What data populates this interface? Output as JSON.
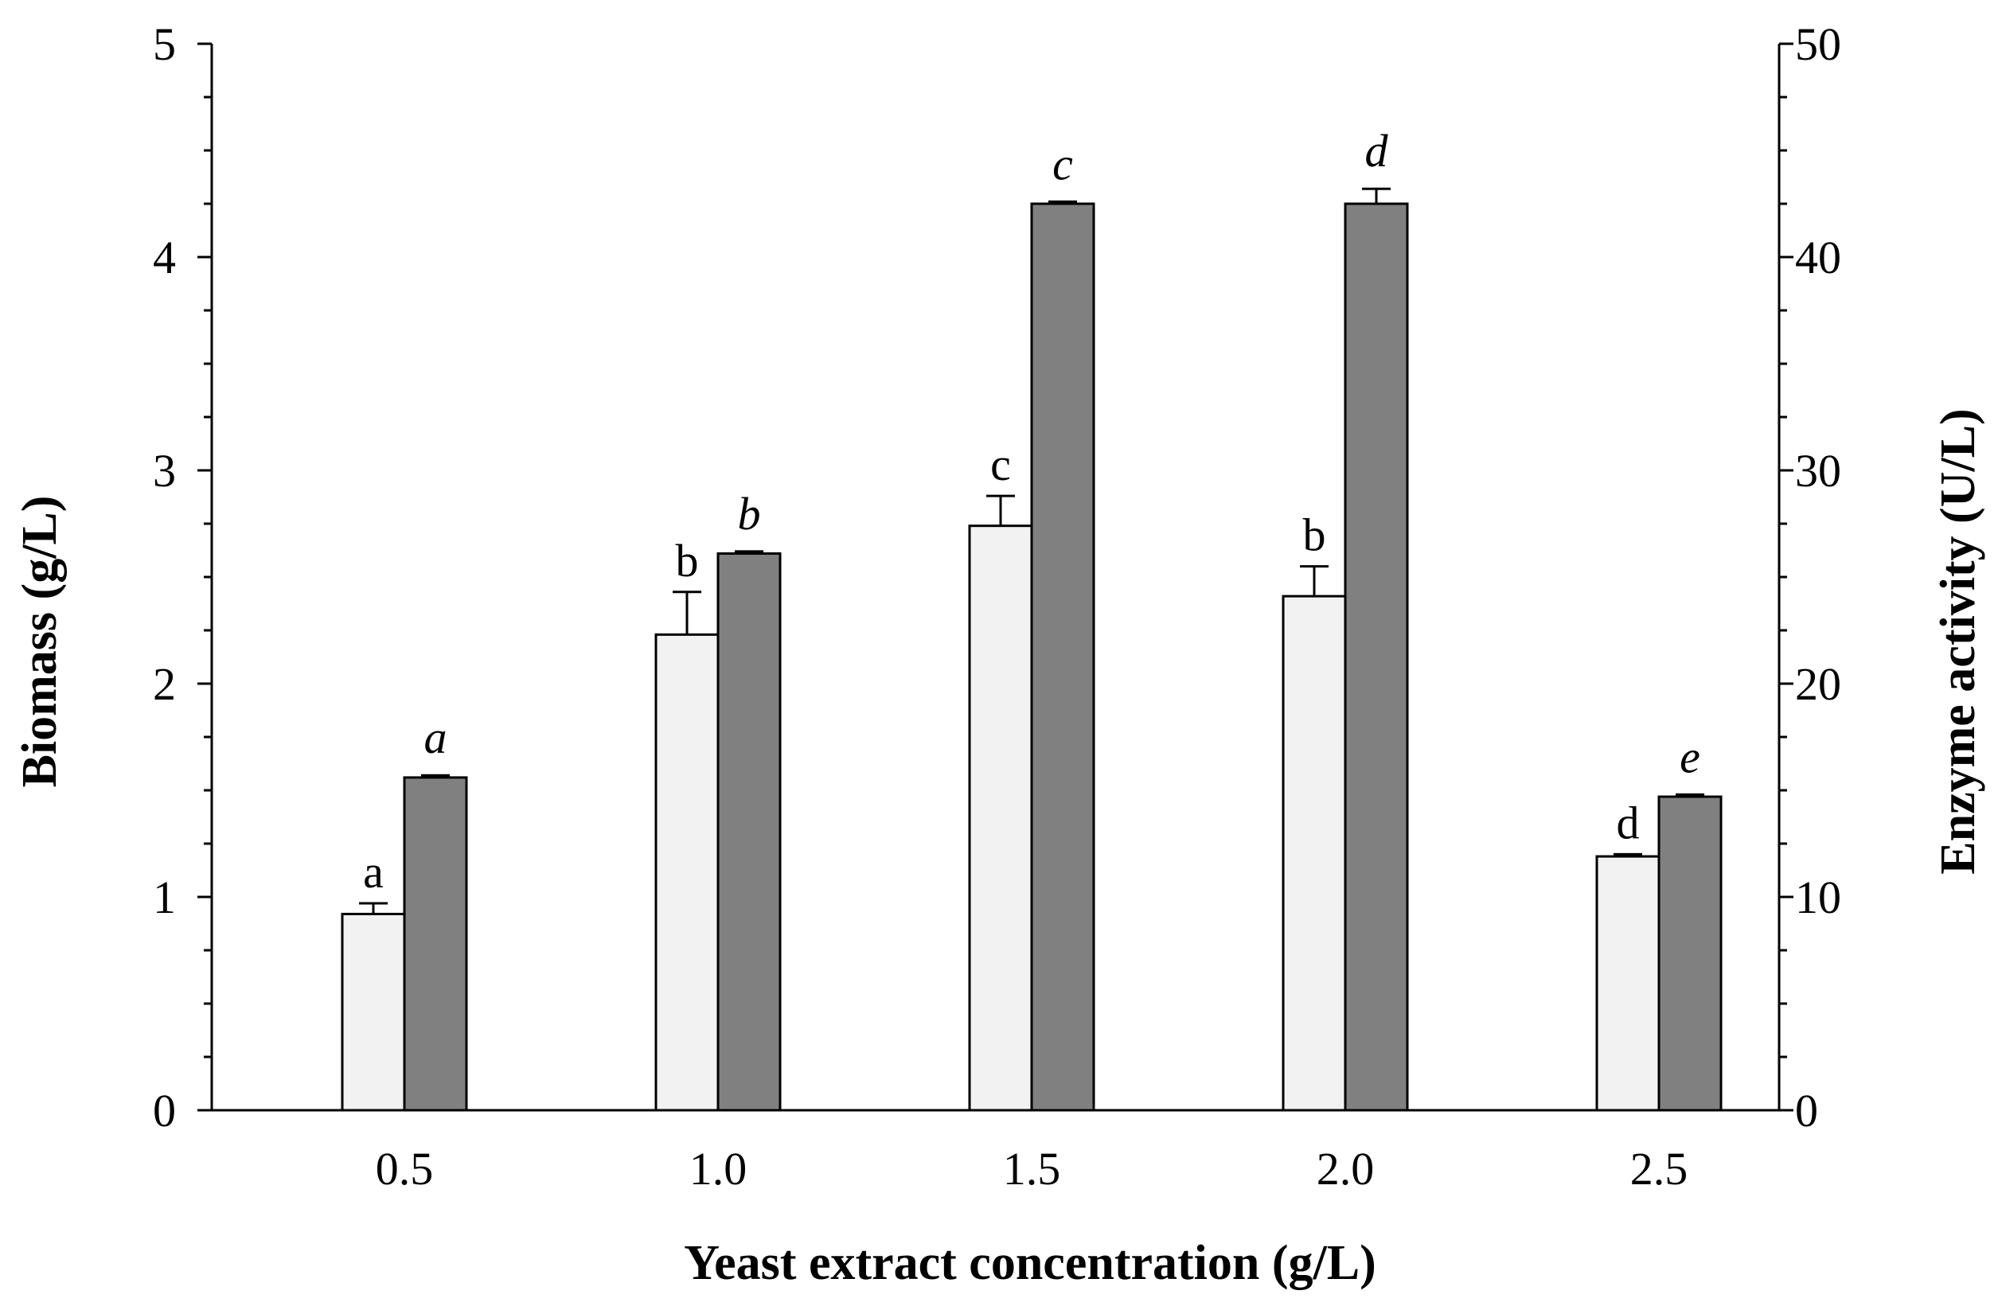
{
  "chart_data": {
    "type": "bar",
    "xlabel": "Yeast extract concentration (g/L)",
    "ylabel": "Biomass (g/L)",
    "y2label": "Enzyme activity (U/L)",
    "categories": [
      "0.5",
      "1.0",
      "1.5",
      "2.0",
      "2.5"
    ],
    "ylim": [
      0,
      5
    ],
    "y2lim": [
      0,
      50
    ],
    "yticks": [
      "0",
      "1",
      "2",
      "3",
      "4",
      "5"
    ],
    "y2ticks": [
      "0",
      "10",
      "20",
      "30",
      "40",
      "50"
    ],
    "series": [
      {
        "name": "Biomass",
        "axis": "left",
        "color": "#f2f2f2",
        "values": [
          0.92,
          2.23,
          2.74,
          2.41,
          1.19
        ],
        "errors": [
          0.05,
          0.2,
          0.14,
          0.14,
          0.01
        ],
        "labels": [
          "a",
          "b",
          "c",
          "b",
          "d"
        ]
      },
      {
        "name": "Enzyme activity",
        "axis": "right",
        "color": "#808080",
        "values": [
          15.6,
          26.1,
          42.5,
          42.5,
          14.7
        ],
        "errors": [
          0.1,
          0.1,
          0.1,
          0.7,
          0.1
        ],
        "labels": [
          "a",
          "b",
          "c",
          "d",
          "e"
        ]
      }
    ]
  }
}
